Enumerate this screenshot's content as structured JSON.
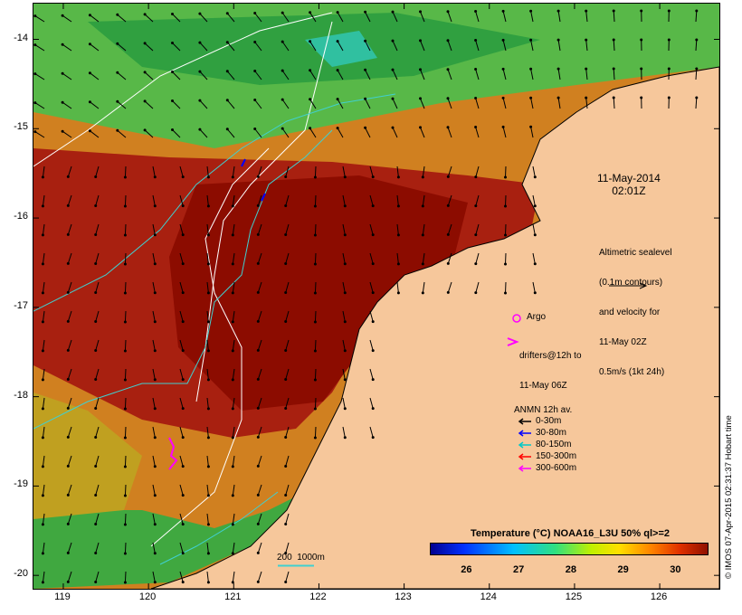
{
  "map": {
    "lat_ticks": [
      "-14",
      "-15",
      "-16",
      "-17",
      "-18",
      "-19",
      "-20"
    ],
    "lon_ticks": [
      "119",
      "120",
      "121",
      "122",
      "123",
      "124",
      "125",
      "126"
    ],
    "lon_range": [
      118.65,
      126.7
    ],
    "lat_range": [
      -20.15,
      -13.6
    ]
  },
  "timestamp": {
    "line1": "11-May-2014",
    "line2": "02:01Z"
  },
  "altimetry_note": {
    "line1": "Altimetric sealevel",
    "line2": "(0.1m contours)",
    "line3": "and velocity for",
    "line4": "11-May 02Z",
    "line5": "0.5m/s (1kt 24h)"
  },
  "argo_label": "Argo",
  "drifters_label": {
    "line1": "drifters@12h to",
    "line2": "11-May 06Z"
  },
  "anmn": {
    "title": "ANMN 12h av.",
    "items": [
      {
        "label": "0-30m",
        "color": "#000000"
      },
      {
        "label": "30-80m",
        "color": "#0000ff"
      },
      {
        "label": "80-150m",
        "color": "#00c8c8"
      },
      {
        "label": "150-300m",
        "color": "#ff0000"
      },
      {
        "label": "300-600m",
        "color": "#ff00ff"
      }
    ]
  },
  "isobath_label": "200  1000m",
  "colorbar": {
    "title": "Temperature (°C) NOAA16_L3U 50% ql>=2",
    "ticks": [
      "26",
      "27",
      "28",
      "29",
      "30"
    ],
    "range": [
      25.3,
      30.6
    ]
  },
  "credit": "© IMOS 07-Apr-2015 02:31:37 Hobart time",
  "colors": {
    "land": "#f6c79b",
    "warm": "#a01000",
    "mid": "#e07a10",
    "cool": "#40b040",
    "contour": "#ffffff",
    "isobath": "#40d0d0"
  }
}
